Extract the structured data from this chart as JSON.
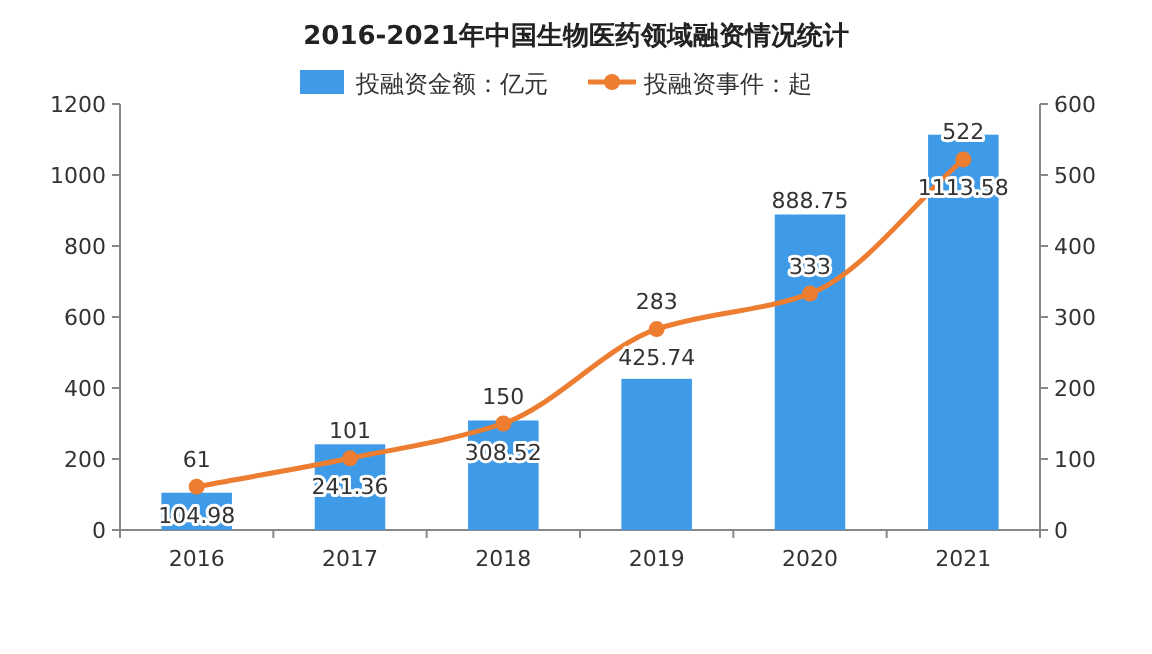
{
  "chart_data": {
    "type": "bar",
    "title": "2016-2021年中国生物医药领域融资情况统计",
    "categories": [
      "2016",
      "2017",
      "2018",
      "2019",
      "2020",
      "2021"
    ],
    "series": [
      {
        "name": "投融资金额：亿元",
        "color": "#3f9be8",
        "values": [
          104.98,
          241.36,
          308.52,
          425.74,
          888.75,
          1113.58
        ]
      },
      {
        "name": "投融资事件：起",
        "type": "line",
        "axis": "y2",
        "color": "#ed7d31",
        "marker": "circle",
        "values": [
          61,
          101,
          150,
          283,
          333,
          522
        ]
      }
    ],
    "ylim": [
      0,
      1200
    ],
    "yticks": [
      0,
      200,
      400,
      600,
      800,
      1000,
      1200
    ],
    "y2lim": [
      0,
      600
    ],
    "y2ticks": [
      0,
      100,
      200,
      300,
      400,
      500,
      600
    ],
    "data_labels": true,
    "legend": "top",
    "grid": false
  }
}
